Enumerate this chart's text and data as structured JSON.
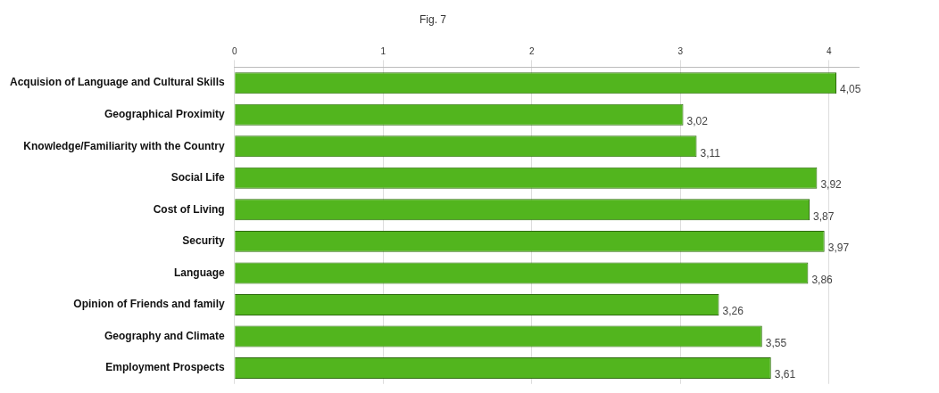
{
  "chart_data": {
    "type": "bar",
    "orientation": "horizontal",
    "title": "Fig. 7",
    "categories": [
      "Acquision of Language and Cultural Skills",
      "Geographical Proximity",
      "Knowledge/Familiarity with the Country",
      "Social Life",
      "Cost of Living",
      "Security",
      "Language",
      "Opinion of Friends and family",
      "Geography and Climate",
      "Employment Prospects"
    ],
    "values": [
      4.05,
      3.02,
      3.11,
      3.92,
      3.87,
      3.97,
      3.86,
      3.26,
      3.55,
      3.61
    ],
    "color": "#52b51e",
    "xlim": [
      0,
      4.2
    ],
    "xticks": [
      0,
      1,
      2,
      3,
      4
    ],
    "grid": "x",
    "data_labels": true,
    "value_labels": [
      "4,05",
      "3,02",
      "3,11",
      "3,92",
      "3,87",
      "3,97",
      "3,86",
      "3,26",
      "3,55",
      "3,61"
    ]
  }
}
